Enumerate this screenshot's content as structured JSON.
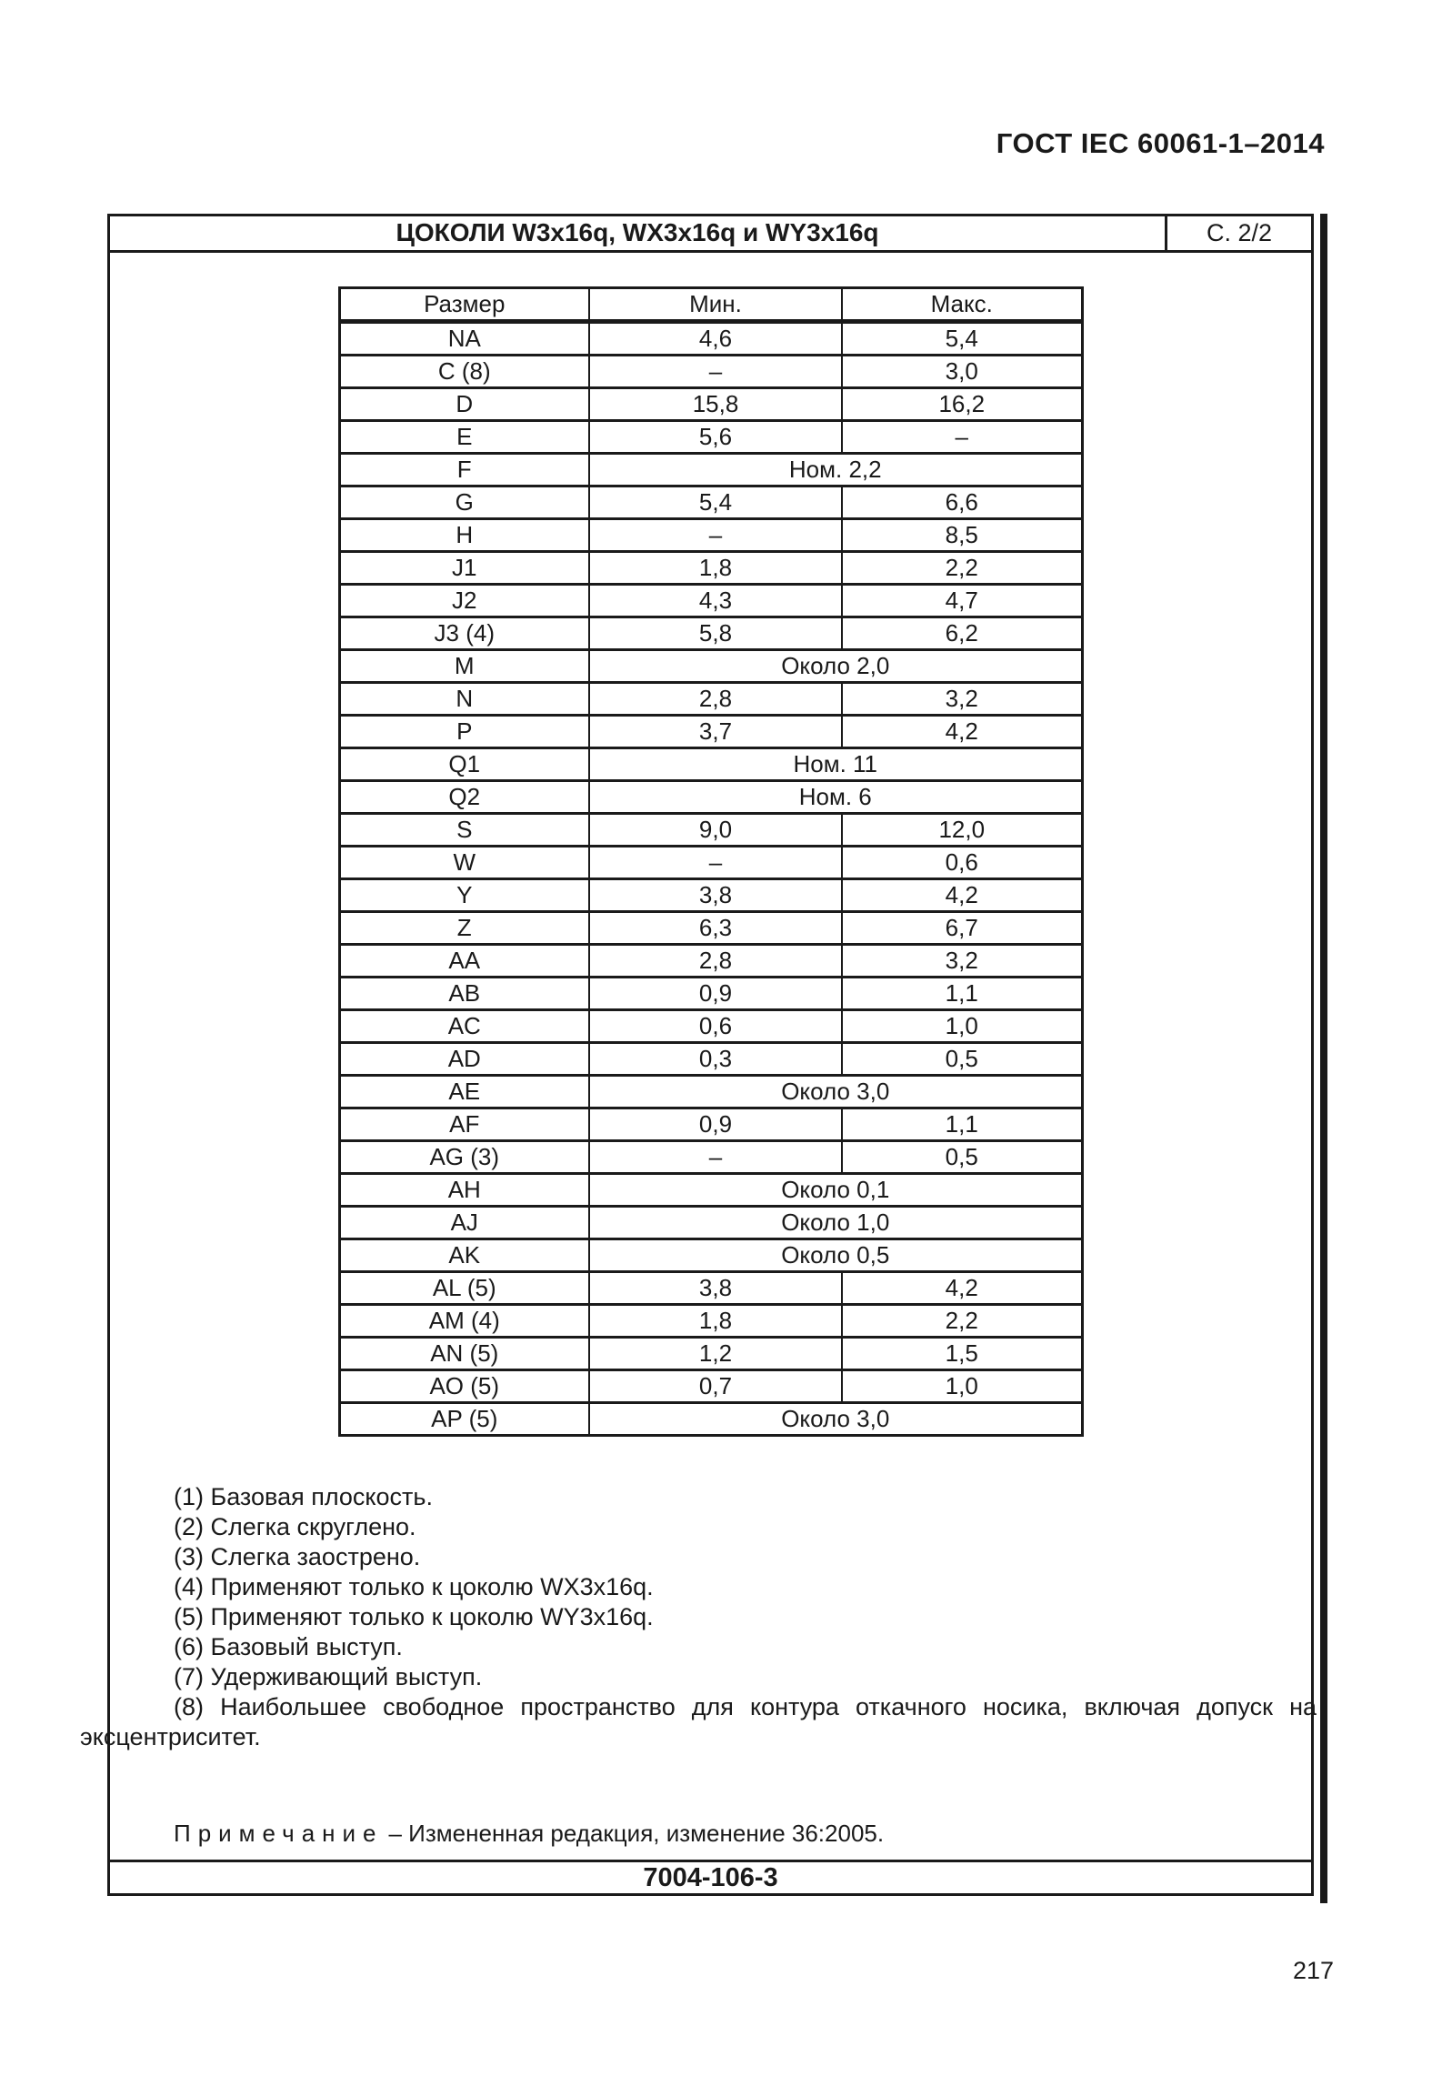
{
  "page": {
    "standard_ref": "ГОСТ IEC 60061-1–2014",
    "page_number": "217"
  },
  "sheet": {
    "title": "ЦОКОЛИ W3x16q, WX3x16q и WY3x16q",
    "sheet_ref": "С. 2/2",
    "footer_code": "7004-106-3"
  },
  "table": {
    "headers": [
      "Размер",
      "Мин.",
      "Макс."
    ],
    "rows": [
      {
        "label": "NA",
        "min": "4,6",
        "max": "5,4"
      },
      {
        "label": "C (8)",
        "min": "–",
        "max": "3,0"
      },
      {
        "label": "D",
        "min": "15,8",
        "max": "16,2"
      },
      {
        "label": "E",
        "min": "5,6",
        "max": "–"
      },
      {
        "label": "F",
        "span": "Ном. 2,2"
      },
      {
        "label": "G",
        "min": "5,4",
        "max": "6,6"
      },
      {
        "label": "H",
        "min": "–",
        "max": "8,5"
      },
      {
        "label": "J1",
        "min": "1,8",
        "max": "2,2"
      },
      {
        "label": "J2",
        "min": "4,3",
        "max": "4,7"
      },
      {
        "label": "J3 (4)",
        "min": "5,8",
        "max": "6,2"
      },
      {
        "label": "M",
        "span": "Около 2,0"
      },
      {
        "label": "N",
        "min": "2,8",
        "max": "3,2"
      },
      {
        "label": "P",
        "min": "3,7",
        "max": "4,2"
      },
      {
        "label": "Q1",
        "span": "Ном. 11"
      },
      {
        "label": "Q2",
        "span": "Ном. 6"
      },
      {
        "label": "S",
        "min": "9,0",
        "max": "12,0"
      },
      {
        "label": "W",
        "min": "–",
        "max": "0,6"
      },
      {
        "label": "Y",
        "min": "3,8",
        "max": "4,2"
      },
      {
        "label": "Z",
        "min": "6,3",
        "max": "6,7"
      },
      {
        "label": "AA",
        "min": "2,8",
        "max": "3,2"
      },
      {
        "label": "AB",
        "min": "0,9",
        "max": "1,1"
      },
      {
        "label": "AC",
        "min": "0,6",
        "max": "1,0"
      },
      {
        "label": "AD",
        "min": "0,3",
        "max": "0,5"
      },
      {
        "label": "AE",
        "span": "Около 3,0"
      },
      {
        "label": "AF",
        "min": "0,9",
        "max": "1,1"
      },
      {
        "label": "AG (3)",
        "min": "–",
        "max": "0,5"
      },
      {
        "label": "AH",
        "span": "Около 0,1"
      },
      {
        "label": "AJ",
        "span": "Около 1,0"
      },
      {
        "label": "AK",
        "span": "Около 0,5"
      },
      {
        "label": "AL (5)",
        "min": "3,8",
        "max": "4,2"
      },
      {
        "label": "AM (4)",
        "min": "1,8",
        "max": "2,2"
      },
      {
        "label": "AN (5)",
        "min": "1,2",
        "max": "1,5"
      },
      {
        "label": "AO (5)",
        "min": "0,7",
        "max": "1,0"
      },
      {
        "label": "AP (5)",
        "span": "Около 3,0"
      }
    ]
  },
  "notes": {
    "items": [
      "(1) Базовая плоскость.",
      "(2) Слегка скруглено.",
      "(3) Слегка заострено.",
      "(4) Применяют только к цоколю WX3x16q.",
      "(5) Применяют только к цоколю WY3x16q.",
      "(6) Базовый выступ.",
      "(7) Удерживающий выступ.",
      "(8) Наибольшее свободное пространство для контура откачного носика, включая допуск на эксцентриситет."
    ]
  },
  "remark": {
    "label": "Примечание",
    "text": "– Измененная редакция, изменение 36:2005."
  }
}
